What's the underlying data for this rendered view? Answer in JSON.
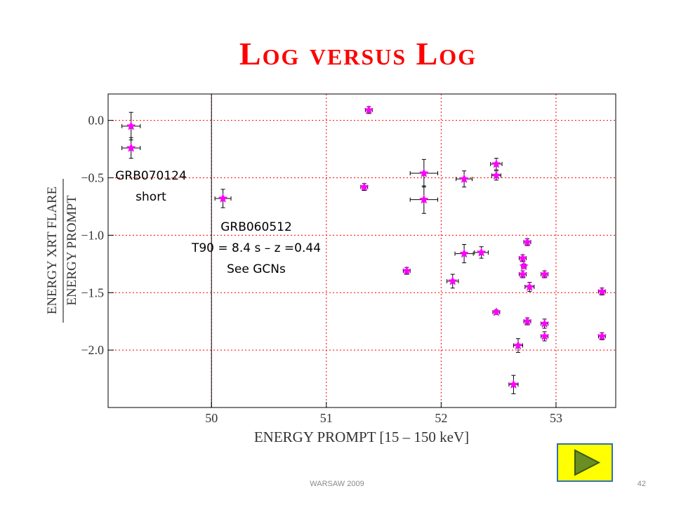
{
  "slide": {
    "title": "Log versus Log",
    "footer_center": "WARSAW 2009",
    "page_number": "42",
    "colors": {
      "title": "#ff0000",
      "marker": "#ff00ff",
      "grid": "#ff0000",
      "play_fill": "#ffff00",
      "play_border": "#2f6fb7",
      "play_arrow": "#6b8e23"
    },
    "play_icon": "play-forward-icon"
  },
  "annotations": {
    "grb070124_name": "GRB070124",
    "grb070124_note": "short",
    "grb060512_name": "GRB060512",
    "grb060512_t90": "T90 = 8.4 s – z =0.44",
    "grb060512_see": "See GCNs"
  },
  "chart_data": {
    "type": "scatter",
    "title": "",
    "xlabel": "ENERGY PROMPT [15 – 150 keV]",
    "ylabel_numerator": "ENERGY XRT FLARE",
    "ylabel_denominator": "ENERGY PROMPT",
    "xlim": [
      49.1,
      53.52
    ],
    "ylim": [
      -2.5,
      0.23
    ],
    "x_ticks": [
      "50",
      "51",
      "52",
      "53"
    ],
    "x_tick_values": [
      50,
      51,
      52,
      53
    ],
    "y_ticks": [
      "0.0",
      "−0.5",
      "−1.0",
      "−1.5",
      "−2.0"
    ],
    "y_tick_values": [
      0,
      -0.5,
      -1.0,
      -1.5,
      -2.0
    ],
    "grid": "dotted red at major ticks",
    "vertical_line_x": 50,
    "points": [
      {
        "x": 49.3,
        "y": -0.05,
        "xerr": 0.08,
        "yerr": 0.12
      },
      {
        "x": 49.3,
        "y": -0.24,
        "xerr": 0.08,
        "yerr": 0.09
      },
      {
        "x": 50.1,
        "y": -0.68,
        "xerr": 0.07,
        "yerr": 0.08
      },
      {
        "x": 51.37,
        "y": 0.09,
        "xerr": 0.03,
        "yerr": 0.03
      },
      {
        "x": 51.33,
        "y": -0.58,
        "xerr": 0.03,
        "yerr": 0.03
      },
      {
        "x": 51.85,
        "y": -0.46,
        "xerr": 0.12,
        "yerr": 0.12
      },
      {
        "x": 51.85,
        "y": -0.69,
        "xerr": 0.12,
        "yerr": 0.12
      },
      {
        "x": 52.2,
        "y": -0.51,
        "xerr": 0.07,
        "yerr": 0.07
      },
      {
        "x": 52.48,
        "y": -0.38,
        "xerr": 0.05,
        "yerr": 0.05
      },
      {
        "x": 52.48,
        "y": -0.48,
        "xerr": 0.04,
        "yerr": 0.04
      },
      {
        "x": 51.7,
        "y": -1.31,
        "xerr": 0.03,
        "yerr": 0.03
      },
      {
        "x": 52.2,
        "y": -1.16,
        "xerr": 0.08,
        "yerr": 0.08
      },
      {
        "x": 52.35,
        "y": -1.15,
        "xerr": 0.06,
        "yerr": 0.05
      },
      {
        "x": 52.1,
        "y": -1.4,
        "xerr": 0.05,
        "yerr": 0.06
      },
      {
        "x": 52.75,
        "y": -1.06,
        "xerr": 0.03,
        "yerr": 0.03
      },
      {
        "x": 52.71,
        "y": -1.2,
        "xerr": 0.03,
        "yerr": 0.03
      },
      {
        "x": 52.72,
        "y": -1.27,
        "xerr": 0.02,
        "yerr": 0.02
      },
      {
        "x": 52.71,
        "y": -1.34,
        "xerr": 0.03,
        "yerr": 0.03
      },
      {
        "x": 52.77,
        "y": -1.45,
        "xerr": 0.04,
        "yerr": 0.04
      },
      {
        "x": 52.9,
        "y": -1.34,
        "xerr": 0.03,
        "yerr": 0.03
      },
      {
        "x": 52.48,
        "y": -1.67,
        "xerr": 0.03,
        "yerr": 0.02
      },
      {
        "x": 52.75,
        "y": -1.75,
        "xerr": 0.03,
        "yerr": 0.03
      },
      {
        "x": 52.9,
        "y": -1.77,
        "xerr": 0.03,
        "yerr": 0.04
      },
      {
        "x": 52.9,
        "y": -1.88,
        "xerr": 0.03,
        "yerr": 0.04
      },
      {
        "x": 52.67,
        "y": -1.96,
        "xerr": 0.04,
        "yerr": 0.06
      },
      {
        "x": 52.63,
        "y": -2.3,
        "xerr": 0.04,
        "yerr": 0.08
      },
      {
        "x": 53.4,
        "y": -1.49,
        "xerr": 0.03,
        "yerr": 0.03
      },
      {
        "x": 53.4,
        "y": -1.88,
        "xerr": 0.03,
        "yerr": 0.03
      }
    ]
  }
}
